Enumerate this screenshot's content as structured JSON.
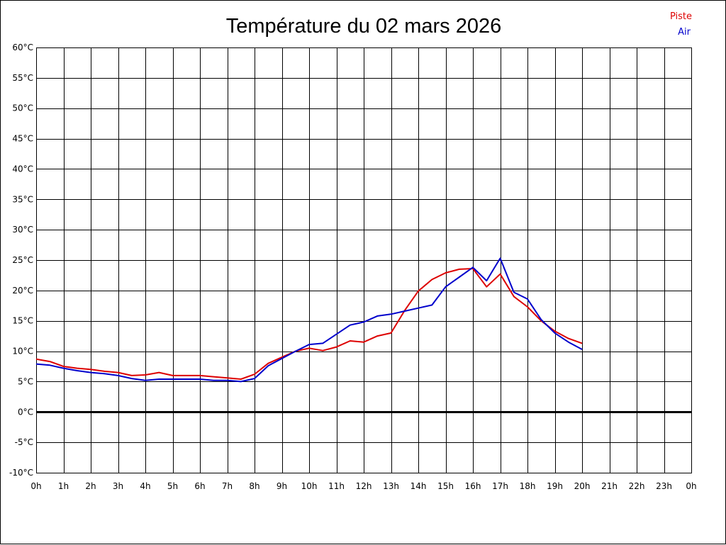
{
  "chart_data": {
    "type": "line",
    "title": "Température du 02 mars 2026",
    "xlabel": "",
    "ylabel": "",
    "x_tick_labels": [
      "0h",
      "1h",
      "2h",
      "3h",
      "4h",
      "5h",
      "6h",
      "7h",
      "8h",
      "9h",
      "10h",
      "11h",
      "12h",
      "13h",
      "14h",
      "15h",
      "16h",
      "17h",
      "18h",
      "19h",
      "20h",
      "21h",
      "22h",
      "23h",
      "0h"
    ],
    "xlim": [
      0,
      24
    ],
    "y_tick_labels": [
      "-10°C",
      "-5°C",
      "0°C",
      "5°C",
      "10°C",
      "15°C",
      "20°C",
      "25°C",
      "30°C",
      "35°C",
      "40°C",
      "45°C",
      "50°C",
      "55°C",
      "60°C"
    ],
    "ylim": [
      -10,
      60
    ],
    "grid": true,
    "zero_line": true,
    "legend_position": "top-right",
    "series": [
      {
        "name": "Piste",
        "color": "#dd0000",
        "x": [
          0,
          0.5,
          1,
          1.5,
          2,
          2.5,
          3,
          3.5,
          4,
          4.5,
          5,
          5.5,
          6,
          6.5,
          7,
          7.5,
          8,
          8.5,
          9,
          9.5,
          10,
          10.5,
          11,
          11.5,
          12,
          12.5,
          13,
          13.5,
          14,
          14.5,
          15,
          15.5,
          16,
          16.5,
          17,
          17.5,
          18,
          18.5,
          19,
          19.5,
          20
        ],
        "y": [
          8.7,
          8.3,
          7.5,
          7.2,
          7.0,
          6.7,
          6.5,
          6.0,
          6.1,
          6.5,
          6.0,
          6.0,
          6.0,
          5.8,
          5.6,
          5.4,
          6.2,
          8.0,
          9.0,
          10.0,
          10.5,
          10.1,
          10.7,
          11.7,
          11.5,
          12.5,
          13.0,
          16.7,
          19.9,
          21.8,
          22.9,
          23.5,
          23.6,
          20.6,
          22.7,
          19.0,
          17.3,
          15.0,
          13.3,
          12.1,
          11.3
        ]
      },
      {
        "name": "Air",
        "color": "#0000cc",
        "x": [
          0,
          0.5,
          1,
          1.5,
          2,
          2.5,
          3,
          3.5,
          4,
          4.5,
          5,
          5.5,
          6,
          6.5,
          7,
          7.5,
          8,
          8.5,
          9,
          9.5,
          10,
          10.5,
          11,
          11.5,
          12,
          12.5,
          13,
          13.5,
          14,
          14.5,
          15,
          15.5,
          16,
          16.5,
          17,
          17.5,
          18,
          18.5,
          19,
          19.5,
          20
        ],
        "y": [
          7.9,
          7.7,
          7.2,
          6.8,
          6.5,
          6.3,
          6.0,
          5.5,
          5.2,
          5.4,
          5.4,
          5.4,
          5.4,
          5.2,
          5.2,
          5.0,
          5.5,
          7.6,
          8.8,
          10.0,
          11.1,
          11.3,
          12.8,
          14.3,
          14.8,
          15.8,
          16.1,
          16.6,
          17.1,
          17.6,
          20.6,
          22.2,
          23.8,
          21.6,
          25.3,
          19.7,
          18.6,
          15.2,
          13.0,
          11.5,
          10.3
        ]
      }
    ]
  }
}
